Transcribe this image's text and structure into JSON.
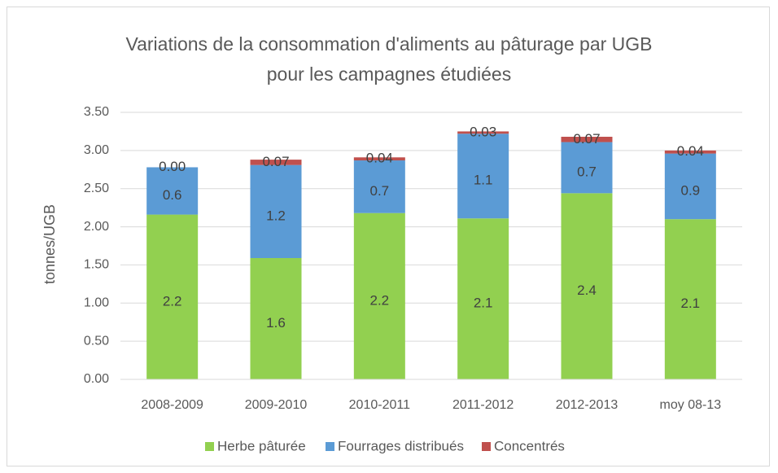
{
  "chart_data": {
    "type": "stacked_bar",
    "title": "Variations de la consommation d'aliments au pâturage par UGB pour les campagnes étudiées",
    "y_label": "tonnes/UGB",
    "categories": [
      "2008-2009",
      "2009-2010",
      "2010-2011",
      "2011-2012",
      "2012-2013",
      "moy 08-13"
    ],
    "series": [
      {
        "name": "Herbe pâturée",
        "color": "#92d050",
        "values": [
          2.16,
          1.59,
          2.18,
          2.11,
          2.44,
          2.1
        ],
        "value_labels": [
          "2.2",
          "1.6",
          "2.2",
          "2.1",
          "2.4",
          "2.1"
        ]
      },
      {
        "name": "Fourrages distribués",
        "color": "#5b9bd5",
        "values": [
          0.62,
          1.22,
          0.69,
          1.11,
          0.67,
          0.86
        ],
        "value_labels": [
          "0.6",
          "1.2",
          "0.7",
          "1.1",
          "0.7",
          "0.9"
        ]
      },
      {
        "name": "Concentrés",
        "color": "#c0504d",
        "values": [
          0,
          0.07,
          0.04,
          0.03,
          0.07,
          0.04
        ],
        "value_labels": [
          "0.00",
          "0.07",
          "0.04",
          "0.03",
          "0.07",
          "0.04"
        ]
      }
    ],
    "ylim": [
      0,
      3.5
    ],
    "yticks": [
      {
        "value": 0,
        "label": "0.00"
      },
      {
        "value": 0.5,
        "label": "0.50"
      },
      {
        "value": 1,
        "label": "1.00"
      },
      {
        "value": 1.5,
        "label": "1.50"
      },
      {
        "value": 2,
        "label": "2.00"
      },
      {
        "value": 2.5,
        "label": "2.50"
      },
      {
        "value": 3,
        "label": "3.00"
      },
      {
        "value": 3.5,
        "label": "3.50"
      }
    ],
    "grid": true,
    "legend": "bottom"
  }
}
